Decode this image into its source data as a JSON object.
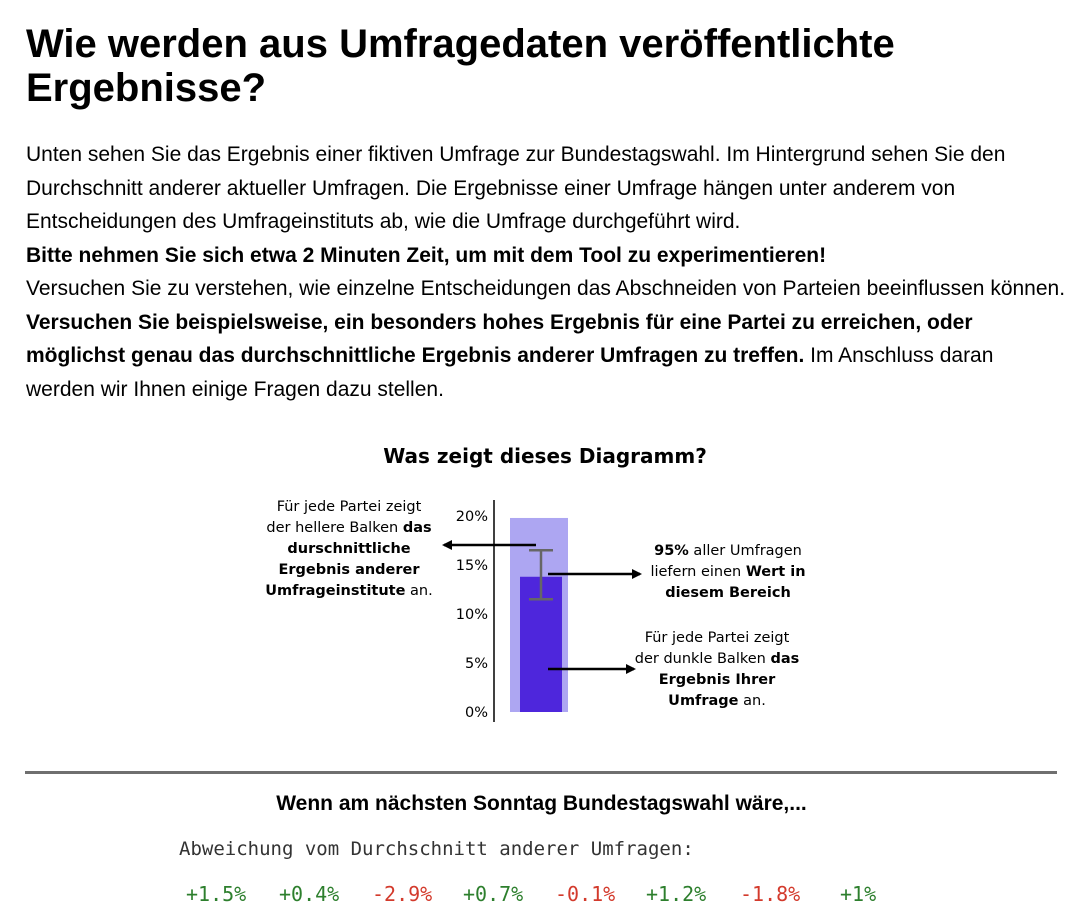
{
  "heading": "Wie werden aus Umfragedaten veröffentlichte Ergebnisse?",
  "intro": {
    "p1": "Unten sehen Sie das Ergebnis einer fiktiven Umfrage zur Bundestagswahl. Im Hintergrund sehen Sie den Durchschnitt anderer aktueller Umfragen. Die Ergebnisse einer Umfrage hängen unter anderem von Entscheidungen des Umfrageinstituts ab, wie die Umfrage durchgeführt wird.",
    "p2_bold": "Bitte nehmen Sie sich etwa 2 Minuten Zeit, um mit dem Tool zu experimentieren!",
    "p3_start": "Versuchen Sie zu verstehen, wie einzelne Entscheidungen das Abschneiden von Parteien beeinflussen können.",
    "p3_bold": "Versuchen Sie beispielsweise, ein besonders hohes Ergebnis für eine Partei zu erreichen, oder möglichst genau das durchschnittliche Ergebnis anderer Umfragen zu treffen.",
    "p3_end": "Im Anschluss daran werden wir Ihnen einige Fragen dazu stellen."
  },
  "diagram": {
    "title": "Was zeigt dieses Diagramm?",
    "left_note": {
      "l1": "Für jede Partei zeigt",
      "l2a": "der hellere Balken ",
      "l2b": "das",
      "l3": "durschnittliche",
      "l4": "Ergebnis anderer",
      "l5a": "Umfrageinstitute",
      "l5b": " an."
    },
    "right_top_note": {
      "l1a": "95%",
      "l1b": " aller Umfragen",
      "l2a": "liefern einen ",
      "l2b": "Wert in",
      "l3": "diesem Bereich"
    },
    "right_bottom_note": {
      "l1": "Für jede Partei zeigt",
      "l2a": "der dunkle Balken ",
      "l2b": "das",
      "l3": "Ergebnis Ihrer",
      "l4a": "Umfrage",
      "l4b": " an."
    },
    "colors": {
      "light_bar": "#ada6f2",
      "dark_bar": "#4e26dc",
      "error_bar": "#666666"
    }
  },
  "chart_data": {
    "type": "bar",
    "categories": [
      ""
    ],
    "series": [
      {
        "name": "",
        "values": [
          19.8
        ]
      },
      {
        "name": "",
        "values": [
          13.8
        ]
      }
    ],
    "error_range": [
      11.5,
      16.5
    ],
    "ylim": [
      0,
      20
    ],
    "yticks": [
      "0%",
      "5%",
      "10%",
      "15%",
      "20%"
    ],
    "title": "",
    "xlabel": "",
    "ylabel": ""
  },
  "question": "Wenn am nächsten Sonntag Bundestagswahl wäre,...",
  "deviation_label": "Abweichung vom Durchschnitt anderer Umfragen:",
  "deviations": [
    "+1.5%",
    "+0.4%",
    "-2.9%",
    "+0.7%",
    "-0.1%",
    "+1.2%",
    "-1.8%",
    "+1%"
  ],
  "deviation_colors": {
    "positive": "#2d7f2d",
    "negative": "#d33a2c"
  }
}
